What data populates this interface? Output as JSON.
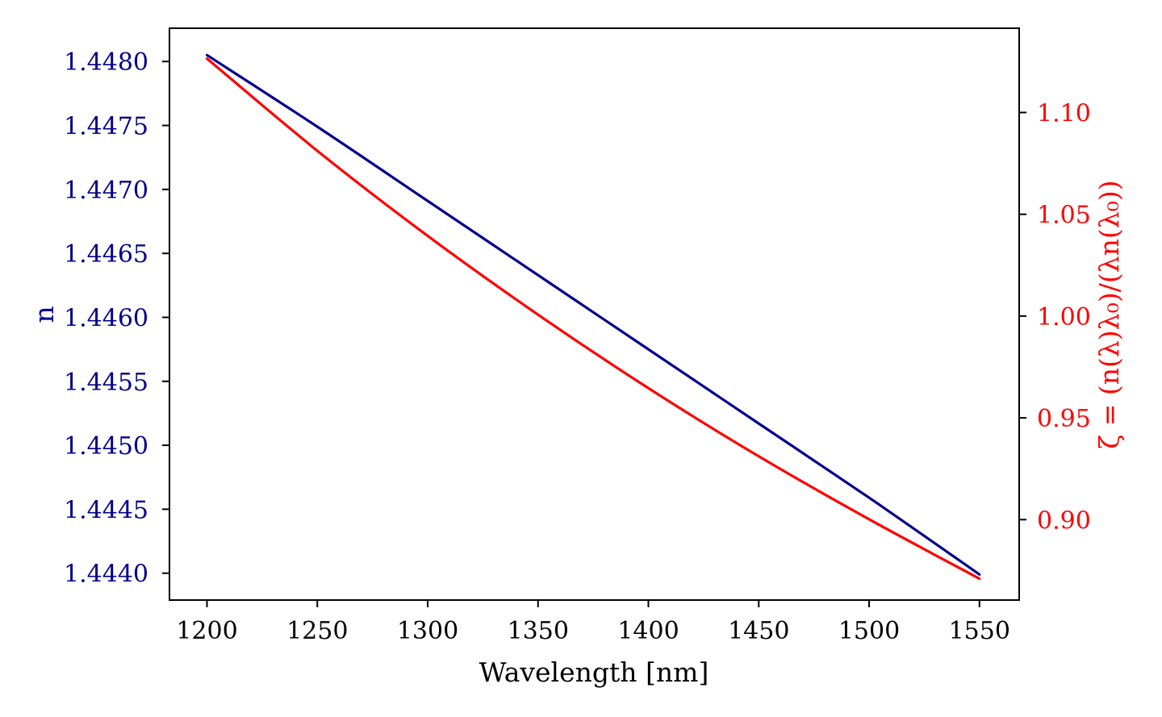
{
  "chart_data": {
    "type": "line",
    "xlabel": "Wavelength [nm]",
    "ylabel": "n",
    "ylabel_right": "ζ = (n(λ)λ₀)/(λn(λ₀))",
    "xlim": [
      1183,
      1568
    ],
    "ylim": [
      1.44379,
      1.44826
    ],
    "ylim_right": [
      0.8605,
      1.1414
    ],
    "xticks": [
      1200,
      1250,
      1300,
      1350,
      1400,
      1450,
      1500,
      1550
    ],
    "xtick_labels": [
      "1200",
      "1250",
      "1300",
      "1350",
      "1400",
      "1450",
      "1500",
      "1550"
    ],
    "yticks": [
      1.444,
      1.4445,
      1.445,
      1.4455,
      1.446,
      1.4465,
      1.447,
      1.4475,
      1.448
    ],
    "ytick_labels": [
      "1.4440",
      "1.4445",
      "1.4450",
      "1.4455",
      "1.4460",
      "1.4465",
      "1.4470",
      "1.4475",
      "1.4480"
    ],
    "yticks_right": [
      0.9,
      0.95,
      1.0,
      1.05,
      1.1
    ],
    "ytick_labels_right": [
      "0.90",
      "0.95",
      "1.00",
      "1.05",
      "1.10"
    ],
    "grid": false,
    "series": [
      {
        "axis": "left",
        "color": "#00008b",
        "x": [
          1200,
          1250,
          1300,
          1350,
          1400,
          1450,
          1500,
          1550
        ],
        "y": [
          1.44805,
          1.44749,
          1.44691,
          1.44633,
          1.44575,
          1.44517,
          1.44459,
          1.44399
        ]
      },
      {
        "axis": "right",
        "color": "#ff0000",
        "x": [
          1200,
          1250,
          1300,
          1350,
          1400,
          1450,
          1500,
          1550
        ],
        "y": [
          1.1265,
          1.0812,
          1.0394,
          1.0007,
          0.9646,
          0.9311,
          0.9002,
          0.871
        ]
      }
    ]
  }
}
